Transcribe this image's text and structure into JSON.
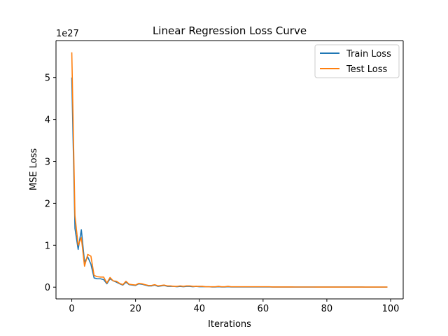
{
  "chart_data": {
    "type": "line",
    "title": "Linear Regression Loss Curve",
    "xlabel": "Iterations",
    "ylabel": "MSE Loss",
    "y_offset_label": "1e27",
    "y_scale": 1e+27,
    "xlim": [
      -4.95,
      103.95
    ],
    "ylim": [
      -0.28,
      5.88
    ],
    "xticks": [
      0,
      20,
      40,
      60,
      80,
      100
    ],
    "yticks": [
      0,
      1,
      2,
      3,
      4,
      5
    ],
    "grid": false,
    "legend_position": "top-right",
    "x": [
      0,
      1,
      2,
      3,
      4,
      5,
      6,
      7,
      8,
      9,
      10,
      11,
      12,
      13,
      14,
      15,
      16,
      17,
      18,
      19,
      20,
      21,
      22,
      23,
      24,
      25,
      26,
      27,
      28,
      29,
      30,
      31,
      32,
      33,
      34,
      35,
      36,
      37,
      38,
      39,
      40,
      41,
      42,
      43,
      44,
      45,
      46,
      47,
      48,
      49,
      50,
      51,
      52,
      53,
      54,
      55,
      56,
      57,
      58,
      59,
      60,
      61,
      62,
      63,
      64,
      65,
      66,
      67,
      68,
      69,
      70,
      71,
      72,
      73,
      74,
      75,
      76,
      77,
      78,
      79,
      80,
      81,
      82,
      83,
      84,
      85,
      86,
      87,
      88,
      89,
      90,
      91,
      92,
      93,
      94,
      95,
      96,
      97,
      98,
      99
    ],
    "series": [
      {
        "name": "Train Loss",
        "color": "#1f77b4",
        "values": [
          5.0,
          1.4,
          0.9,
          1.37,
          0.6,
          0.72,
          0.55,
          0.22,
          0.2,
          0.2,
          0.18,
          0.08,
          0.2,
          0.15,
          0.12,
          0.08,
          0.05,
          0.12,
          0.06,
          0.05,
          0.04,
          0.08,
          0.07,
          0.05,
          0.03,
          0.03,
          0.05,
          0.02,
          0.03,
          0.04,
          0.02,
          0.02,
          0.02,
          0.01,
          0.02,
          0.01,
          0.02,
          0.02,
          0.01,
          0.02,
          0.01,
          0.01,
          0.01,
          0.01,
          0.005,
          0.005,
          0.01,
          0.005,
          0.005,
          0.01,
          0.005,
          0.005,
          0.005,
          0.005,
          0.005,
          0.005,
          0.005,
          0.005,
          0.005,
          0.005,
          0.005,
          0.005,
          0.005,
          0.003,
          0.003,
          0.003,
          0.003,
          0.003,
          0.003,
          0.003,
          0.002,
          0.002,
          0.002,
          0.002,
          0.002,
          0.002,
          0.002,
          0.002,
          0.002,
          0.002,
          0.002,
          0.002,
          0.002,
          0.002,
          0.002,
          0.002,
          0.002,
          0.002,
          0.002,
          0.002,
          0.002,
          0.002,
          0.001,
          0.001,
          0.001,
          0.001,
          0.001,
          0.001,
          0.001,
          0.001
        ]
      },
      {
        "name": "Test Loss",
        "color": "#ff7f0e",
        "values": [
          5.6,
          1.7,
          1.0,
          1.18,
          0.5,
          0.78,
          0.74,
          0.28,
          0.25,
          0.24,
          0.24,
          0.1,
          0.23,
          0.15,
          0.14,
          0.09,
          0.06,
          0.14,
          0.07,
          0.06,
          0.05,
          0.09,
          0.08,
          0.06,
          0.04,
          0.04,
          0.06,
          0.03,
          0.04,
          0.05,
          0.03,
          0.03,
          0.02,
          0.02,
          0.03,
          0.02,
          0.03,
          0.03,
          0.02,
          0.02,
          0.02,
          0.02,
          0.01,
          0.01,
          0.01,
          0.01,
          0.02,
          0.01,
          0.01,
          0.02,
          0.01,
          0.01,
          0.01,
          0.01,
          0.01,
          0.01,
          0.01,
          0.01,
          0.01,
          0.01,
          0.01,
          0.01,
          0.01,
          0.005,
          0.005,
          0.005,
          0.005,
          0.005,
          0.005,
          0.005,
          0.004,
          0.004,
          0.004,
          0.004,
          0.004,
          0.004,
          0.004,
          0.003,
          0.003,
          0.003,
          0.003,
          0.003,
          0.003,
          0.003,
          0.003,
          0.003,
          0.003,
          0.003,
          0.003,
          0.003,
          0.003,
          0.003,
          0.002,
          0.002,
          0.002,
          0.002,
          0.002,
          0.002,
          0.002,
          0.002
        ]
      }
    ]
  }
}
